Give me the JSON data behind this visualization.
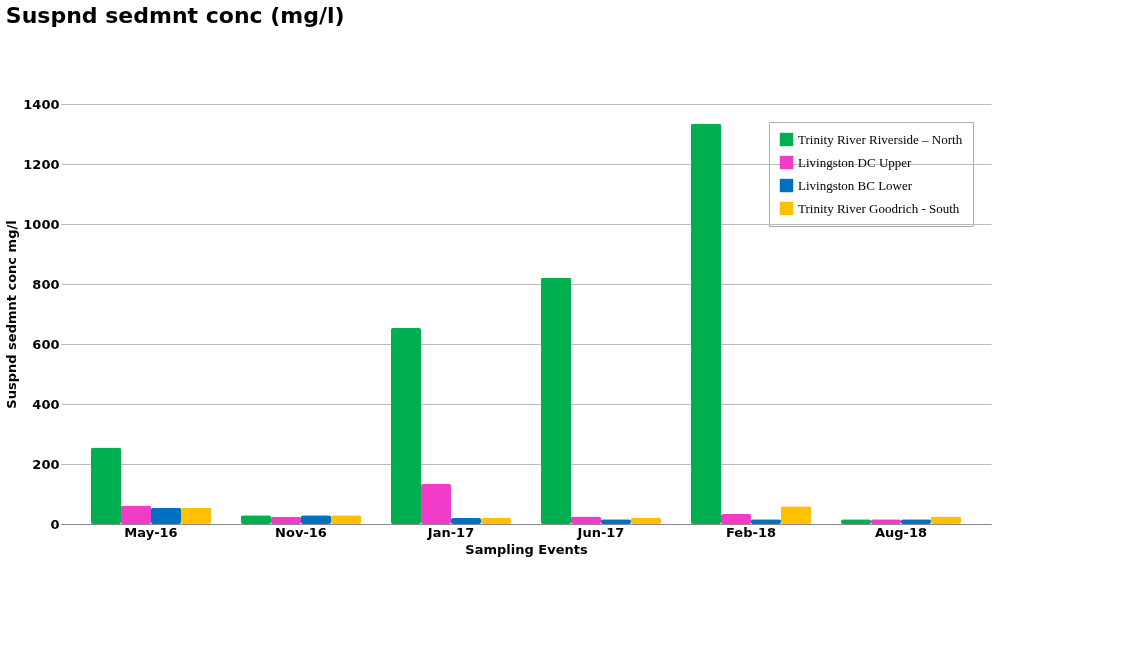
{
  "chart_data": {
    "type": "bar",
    "title": "Suspnd sedmnt conc (mg/l)",
    "xlabel": "Sampling Events",
    "ylabel": "Suspnd sedmnt conc mg/l",
    "categories": [
      "May-16",
      "Nov-16",
      "Jan-17",
      "Jun-17",
      "Feb-18",
      "Aug-18"
    ],
    "series": [
      {
        "name": "Trinity River Riverside – North",
        "color": "#00b050",
        "values": [
          255,
          29,
          653,
          822,
          1335,
          16
        ]
      },
      {
        "name": "Livingston DC Upper",
        "color": "#f03cc8",
        "values": [
          62,
          24,
          133,
          25,
          33,
          16
        ]
      },
      {
        "name": "Livingston BC Lower",
        "color": "#0070c0",
        "values": [
          54,
          29,
          20,
          16,
          16,
          16
        ]
      },
      {
        "name": "Trinity River Goodrich - South",
        "color": "#ffc000",
        "values": [
          54,
          29,
          20,
          21,
          59,
          25
        ]
      }
    ],
    "ylim": [
      0,
      1400
    ],
    "yticks": [
      0,
      200,
      400,
      600,
      800,
      1000,
      1200,
      1400
    ],
    "grid": "y",
    "legend": "top right"
  }
}
